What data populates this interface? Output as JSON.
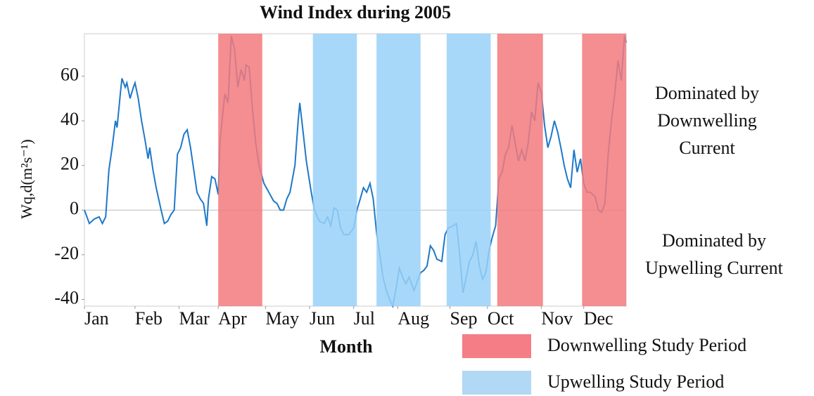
{
  "chart_data": {
    "type": "line",
    "title": "Wind Index during 2005",
    "x_label": "Month",
    "y_label": "Wq,d(m²s⁻¹)",
    "xlim": [
      0,
      332
    ],
    "ylim": [
      -43,
      79
    ],
    "yticks": [
      -40,
      -20,
      0,
      20,
      40,
      60
    ],
    "xticks": [
      {
        "value": 0,
        "label": "Jan"
      },
      {
        "value": 31,
        "label": "Feb"
      },
      {
        "value": 58,
        "label": "Mar"
      },
      {
        "value": 82,
        "label": "Apr"
      },
      {
        "value": 111,
        "label": "May"
      },
      {
        "value": 138,
        "label": "Jun"
      },
      {
        "value": 165,
        "label": "Jul"
      },
      {
        "value": 192,
        "label": "Aug"
      },
      {
        "value": 224,
        "label": "Sep"
      },
      {
        "value": 247,
        "label": "Oct"
      },
      {
        "value": 280,
        "label": "Nov"
      },
      {
        "value": 306,
        "label": "Dec"
      }
    ],
    "grid": false,
    "reference_line": 0,
    "series": [
      {
        "color": "#1f78c8",
        "x": [
          0,
          3,
          6,
          9,
          11,
          13,
          15,
          17,
          19,
          20,
          22,
          23,
          25,
          26,
          28,
          30,
          31,
          33,
          35,
          37,
          39,
          40,
          42,
          44,
          47,
          49,
          51,
          53,
          55,
          57,
          59,
          61,
          63,
          65,
          67,
          69,
          71,
          73,
          75,
          76,
          78,
          80,
          82,
          83,
          86,
          88,
          90,
          92,
          94,
          96,
          98,
          99,
          101,
          103,
          105,
          107,
          110,
          113,
          116,
          118,
          120,
          122,
          124,
          126,
          129,
          131,
          132,
          134,
          136,
          139,
          141,
          144,
          147,
          149,
          151,
          153,
          155,
          157,
          159,
          162,
          165,
          167,
          169,
          171,
          173,
          175,
          177,
          179,
          181,
          183,
          185,
          187,
          189,
          191,
          193,
          195,
          197,
          199,
          202,
          204,
          206,
          208,
          210,
          212,
          214,
          216,
          219,
          221,
          223,
          226,
          228,
          230,
          232,
          234,
          236,
          238,
          240,
          242,
          244,
          246,
          248,
          250,
          252,
          254,
          256,
          258,
          260,
          262,
          264,
          266,
          268,
          270,
          272,
          274,
          276,
          278,
          280,
          282,
          284,
          286,
          288,
          290,
          292,
          294,
          296,
          298,
          300,
          302,
          304,
          306,
          308,
          310,
          313,
          315,
          317,
          319,
          321,
          323,
          325,
          327,
          329,
          331,
          332
        ],
        "values": [
          0,
          -6,
          -4,
          -3,
          -6,
          -3,
          18,
          28,
          40,
          37,
          52,
          59,
          55,
          57,
          50,
          55,
          57,
          50,
          40,
          32,
          23,
          28,
          18,
          10,
          0,
          -6,
          -5,
          -2,
          0,
          25,
          28,
          34,
          36,
          28,
          18,
          8,
          5,
          3,
          -7,
          5,
          15,
          14,
          7,
          30,
          52,
          48,
          78,
          72,
          55,
          63,
          58,
          65,
          64,
          45,
          30,
          20,
          12,
          8,
          4,
          3,
          0,
          0,
          5,
          8,
          20,
          40,
          48,
          35,
          22,
          8,
          0,
          -5,
          -6,
          -3,
          -7,
          1,
          0,
          -8,
          -11,
          -11,
          -8,
          0,
          5,
          10,
          8,
          12,
          5,
          -10,
          -20,
          -30,
          -36,
          -40,
          -43,
          -35,
          -26,
          -30,
          -33,
          -30,
          -36,
          -32,
          -28,
          -27,
          -25,
          -16,
          -18,
          -22,
          -23,
          -11,
          -8,
          -7,
          -6,
          -20,
          -37,
          -30,
          -23,
          -20,
          -14,
          -25,
          -31,
          -28,
          -18,
          -12,
          -7,
          14,
          17,
          25,
          28,
          38,
          30,
          22,
          27,
          22,
          30,
          44,
          40,
          57,
          53,
          38,
          28,
          33,
          40,
          35,
          28,
          20,
          14,
          10,
          27,
          17,
          23,
          12,
          8,
          8,
          6,
          0,
          -1,
          3,
          25,
          40,
          52,
          67,
          58,
          78,
          75
        ]
      }
    ],
    "periods": [
      {
        "name": "Downwelling Study Period",
        "color": "#f27a7e",
        "legend_color": "#f47d86",
        "ranges": [
          [
            82,
            109
          ],
          [
            253,
            281
          ],
          [
            305,
            332
          ]
        ]
      },
      {
        "name": "Upwelling Study Period",
        "color": "#99d1f8",
        "legend_color": "#b1d8f4",
        "ranges": [
          [
            140,
            167
          ],
          [
            179,
            206
          ],
          [
            222,
            249
          ]
        ]
      }
    ],
    "annotations": [
      {
        "lines": [
          "Dominated by",
          "Downwelling",
          "Current"
        ]
      },
      {
        "lines": [
          "Dominated by",
          "Upwelling Current"
        ]
      }
    ]
  }
}
